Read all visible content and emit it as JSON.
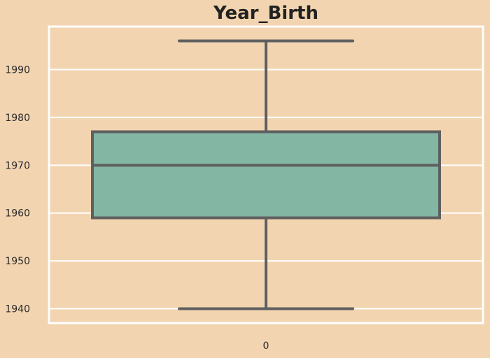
{
  "chart_data": {
    "type": "box",
    "title": "Year_Birth",
    "xlabel": "",
    "ylabel": "",
    "categories": [
      "0"
    ],
    "boxes": [
      {
        "category": "0",
        "whisker_low": 1940,
        "q1": 1959,
        "median": 1970,
        "q3": 1977,
        "whisker_high": 1996
      }
    ],
    "yticks": [
      1940,
      1950,
      1960,
      1970,
      1980,
      1990
    ],
    "ylim": [
      1937,
      1999
    ],
    "grid": true,
    "colors": {
      "background": "#f2d4b0",
      "box_fill": "#84b6a4",
      "line": "#5f5f5f",
      "grid": "#ffffff",
      "text": "#222222"
    }
  }
}
